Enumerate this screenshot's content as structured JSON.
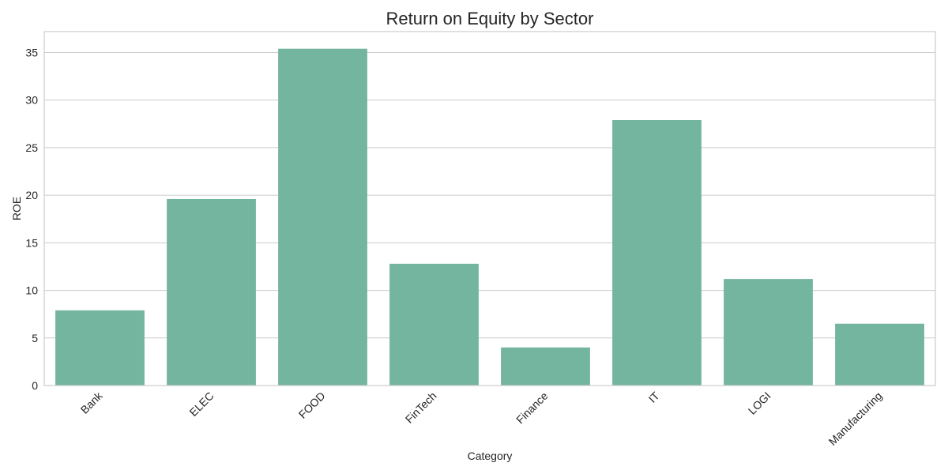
{
  "chart_data": {
    "type": "bar",
    "title": "Return on Equity by Sector",
    "xlabel": "Category",
    "ylabel": "ROE",
    "categories": [
      "Bank",
      "ELEC",
      "FOOD",
      "FinTech",
      "Finance",
      "IT",
      "LOGI",
      "Manufacturing"
    ],
    "values": [
      7.9,
      19.6,
      35.4,
      12.8,
      4.0,
      27.9,
      11.2,
      6.5
    ],
    "ylim": [
      0,
      37.2
    ],
    "yticks": [
      0,
      5,
      10,
      15,
      20,
      25,
      30,
      35
    ],
    "grid": true,
    "legend": "none",
    "bar_color": "#73b59f",
    "xtick_rotation": 45
  }
}
